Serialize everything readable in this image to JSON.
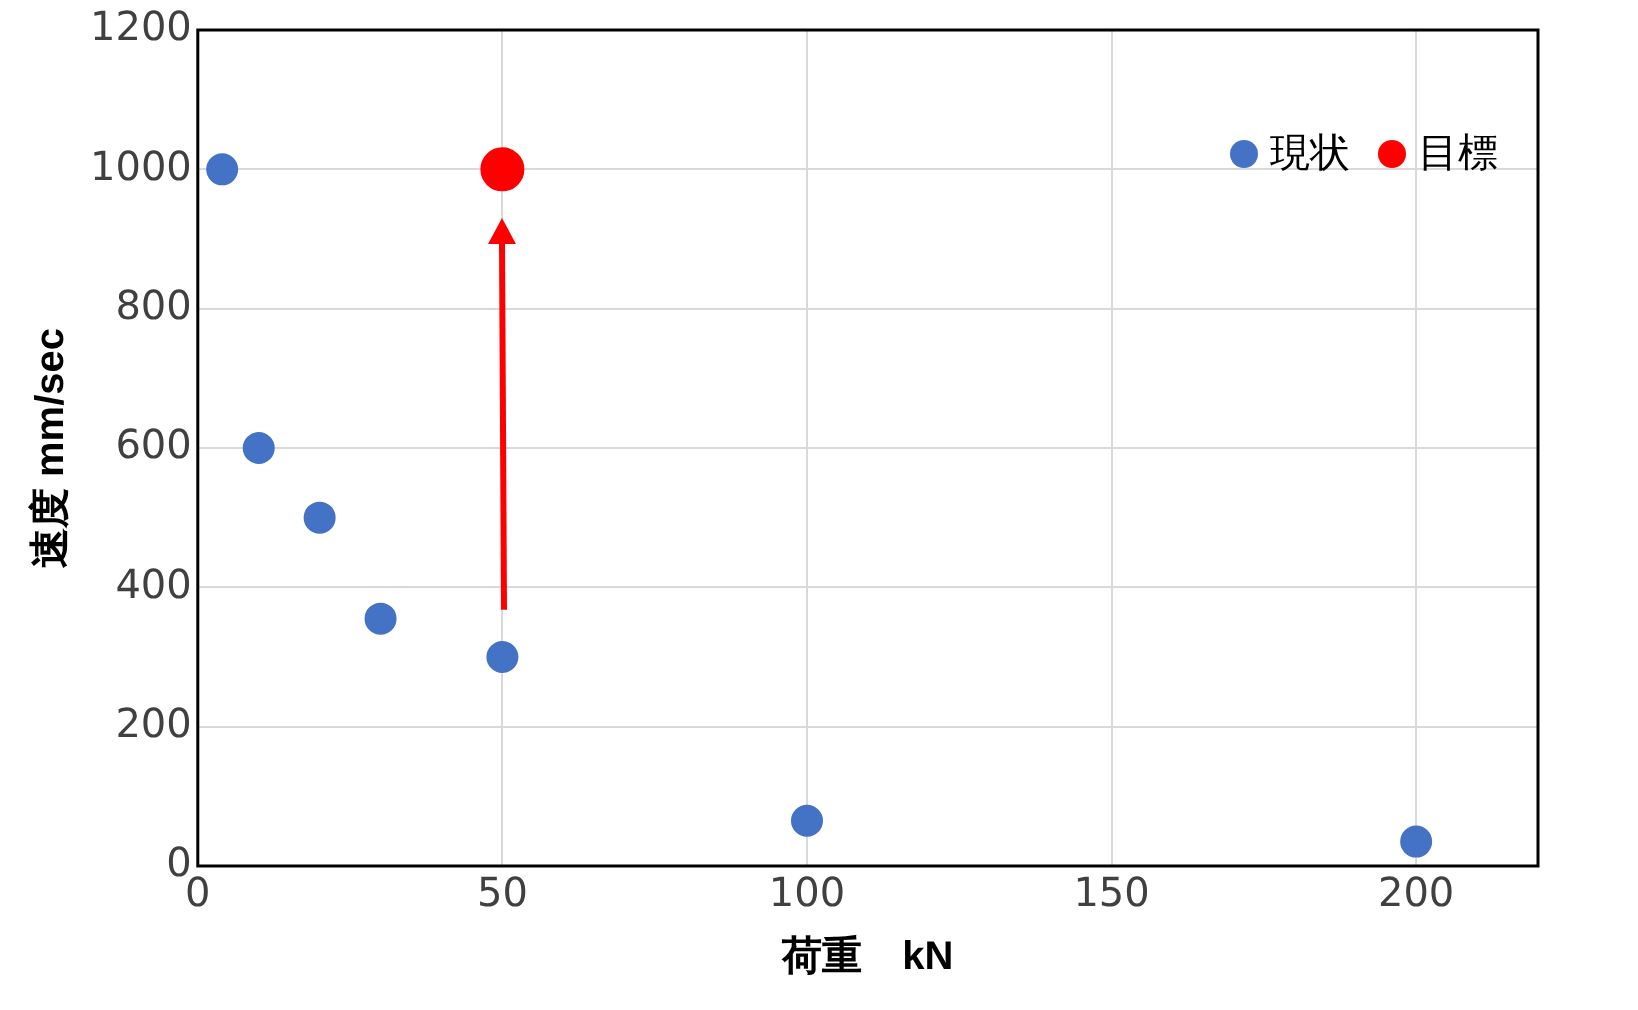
{
  "chart_data": {
    "type": "scatter",
    "xlabel": "荷重　kN",
    "ylabel": "速度 mm/sec",
    "series": [
      {
        "name": "現状",
        "color": "#4472c4",
        "x": [
          4,
          10,
          20,
          30,
          50,
          100,
          200
        ],
        "values": [
          1000,
          600,
          500,
          355,
          300,
          65,
          35
        ]
      },
      {
        "name": "目標",
        "color": "#ff0000",
        "x": [
          50
        ],
        "values": [
          1000
        ]
      }
    ],
    "xlim": [
      0,
      220
    ],
    "xticks": [
      0,
      50,
      100,
      150,
      200
    ],
    "ylim": [
      0,
      1200
    ],
    "yticks": [
      0,
      200,
      400,
      600,
      800,
      1000,
      1200
    ],
    "grid": true,
    "legend": "top right",
    "marker": "circle"
  }
}
